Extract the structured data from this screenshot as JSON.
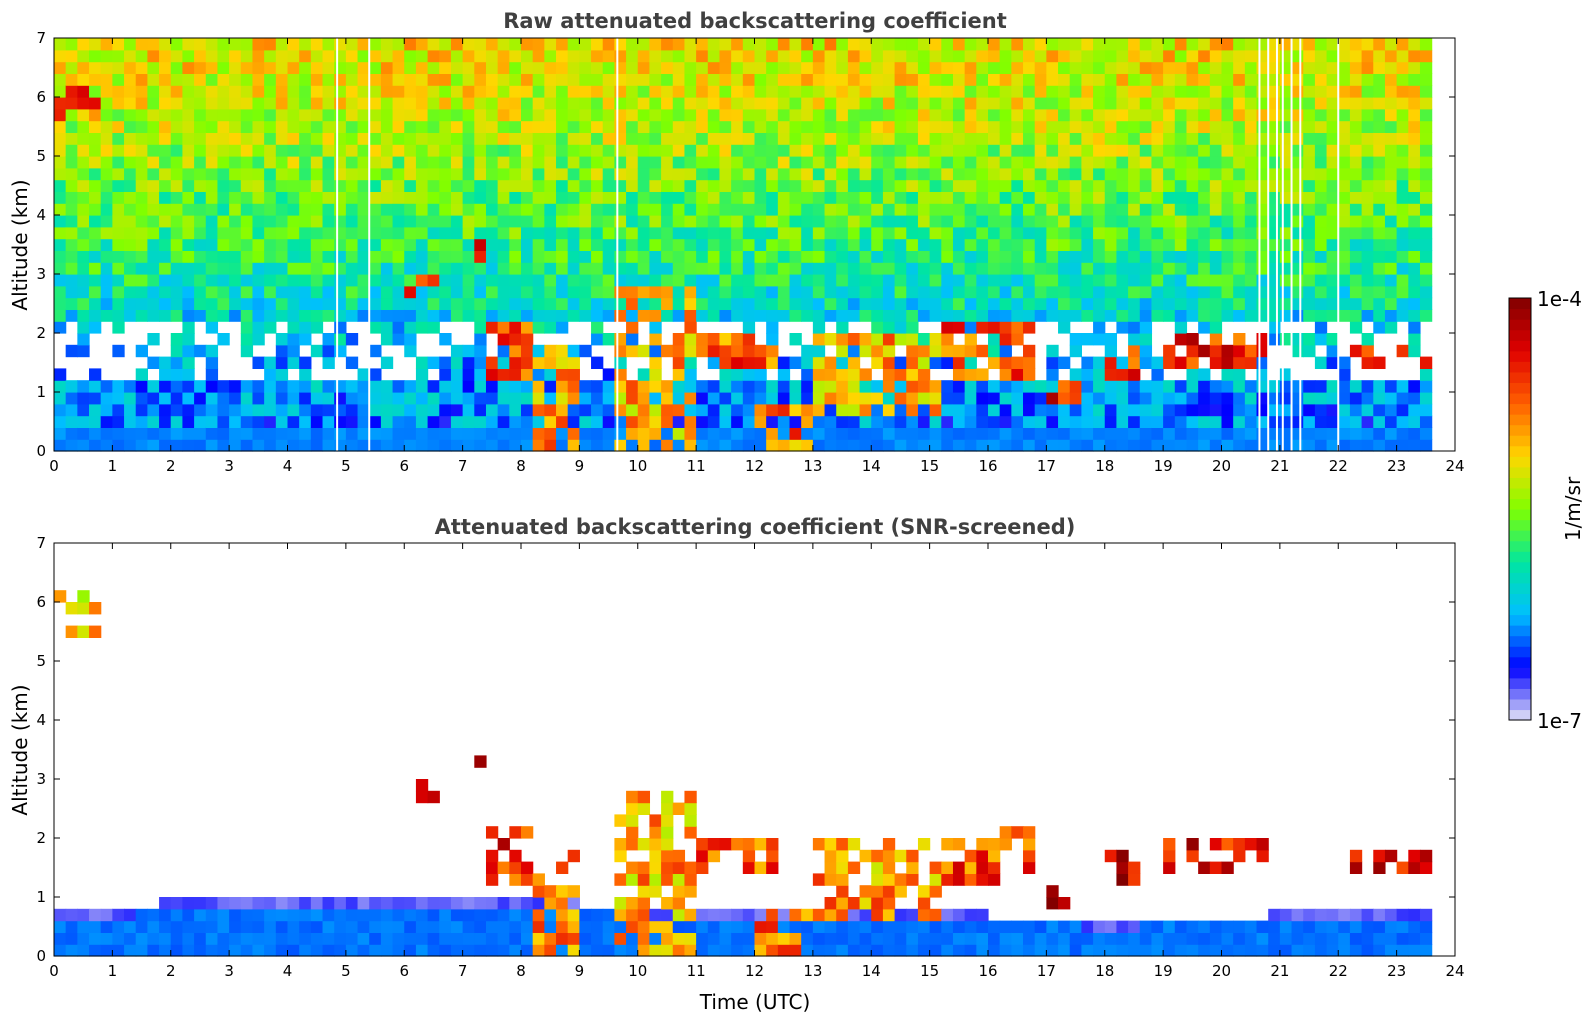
{
  "chart_data": [
    {
      "type": "heatmap",
      "title": "Raw attenuated backscattering coefficient",
      "xlabel": "",
      "ylabel": "Altitude (km)",
      "xlim": [
        0,
        24
      ],
      "ylim": [
        0,
        7
      ],
      "x_ticks": [
        "0",
        "1",
        "2",
        "3",
        "4",
        "5",
        "6",
        "7",
        "8",
        "9",
        "10",
        "11",
        "12",
        "13",
        "14",
        "15",
        "16",
        "17",
        "18",
        "19",
        "20",
        "21",
        "22",
        "23",
        "24"
      ],
      "y_ticks": [
        "0",
        "1",
        "2",
        "3",
        "4",
        "5",
        "6",
        "7"
      ],
      "data_end_time": 23.55,
      "background_profile": [
        {
          "altitude": 0.2,
          "level": 0.2
        },
        {
          "altitude": 1.5,
          "level": 0.25
        },
        {
          "altitude": 3.5,
          "level": 0.42
        },
        {
          "altitude": 5.5,
          "level": 0.55
        },
        {
          "altitude": 7.0,
          "level": 0.62
        }
      ],
      "cloud_features": [
        {
          "t0": 0.0,
          "t1": 0.8,
          "z0": 5.6,
          "z1": 6.3,
          "level": 0.92
        },
        {
          "t0": 6.0,
          "t1": 6.6,
          "z0": 2.7,
          "z1": 3.0,
          "level": 0.95
        },
        {
          "t0": 7.2,
          "t1": 7.4,
          "z0": 3.2,
          "z1": 3.6,
          "level": 0.95
        },
        {
          "t0": 7.4,
          "t1": 8.3,
          "z0": 1.3,
          "z1": 2.1,
          "level": 0.9
        },
        {
          "t0": 8.2,
          "t1": 9.0,
          "z0": 0.0,
          "z1": 1.8,
          "level": 0.82
        },
        {
          "t0": 9.5,
          "t1": 11.0,
          "z0": 0.1,
          "z1": 2.9,
          "level": 0.8
        },
        {
          "t0": 11.0,
          "t1": 12.3,
          "z0": 1.5,
          "z1": 1.9,
          "level": 0.88
        },
        {
          "t0": 12.0,
          "t1": 13.0,
          "z0": 0.0,
          "z1": 0.8,
          "level": 0.85
        },
        {
          "t0": 13.0,
          "t1": 15.2,
          "z0": 0.6,
          "z1": 2.0,
          "level": 0.8
        },
        {
          "t0": 15.2,
          "t1": 16.8,
          "z0": 1.2,
          "z1": 2.2,
          "level": 0.9
        },
        {
          "t0": 16.9,
          "t1": 17.6,
          "z0": 0.9,
          "z1": 1.2,
          "level": 0.95
        },
        {
          "t0": 17.9,
          "t1": 18.5,
          "z0": 1.3,
          "z1": 1.8,
          "level": 0.95
        },
        {
          "t0": 19.0,
          "t1": 20.8,
          "z0": 1.5,
          "z1": 1.9,
          "level": 0.95
        },
        {
          "t0": 22.1,
          "t1": 23.5,
          "z0": 1.45,
          "z1": 1.7,
          "level": 0.97
        }
      ],
      "missing_data_times": [
        4.85,
        5.4,
        9.65,
        20.65,
        20.8,
        20.95,
        21.05,
        21.2,
        21.35,
        22.0
      ]
    },
    {
      "type": "heatmap",
      "title": "Attenuated backscattering coefficient (SNR-screened)",
      "xlabel": "Time (UTC)",
      "ylabel": "Altitude (km)",
      "xlim": [
        0,
        24
      ],
      "ylim": [
        0,
        7
      ],
      "x_ticks": [
        "0",
        "1",
        "2",
        "3",
        "4",
        "5",
        "6",
        "7",
        "8",
        "9",
        "10",
        "11",
        "12",
        "13",
        "14",
        "15",
        "16",
        "17",
        "18",
        "19",
        "20",
        "21",
        "22",
        "23",
        "24"
      ],
      "y_ticks": [
        "0",
        "1",
        "2",
        "3",
        "4",
        "5",
        "6",
        "7"
      ],
      "data_end_time": 23.55,
      "boundary_layer_top": [
        {
          "time": 0,
          "altitude": 0.8
        },
        {
          "time": 3.5,
          "altitude": 1.0
        },
        {
          "time": 7.0,
          "altitude": 0.95
        },
        {
          "time": 15.0,
          "altitude": 0.75
        },
        {
          "time": 18.0,
          "altitude": 0.6
        },
        {
          "time": 23.5,
          "altitude": 0.8
        }
      ],
      "cloud_features": [
        {
          "t0": 0.0,
          "t1": 0.8,
          "z0": 5.5,
          "z1": 6.3,
          "level": 0.75
        },
        {
          "t0": 6.0,
          "t1": 6.6,
          "z0": 2.7,
          "z1": 3.0,
          "level": 1.0
        },
        {
          "t0": 7.2,
          "t1": 7.4,
          "z0": 3.2,
          "z1": 3.6,
          "level": 1.0
        },
        {
          "t0": 7.4,
          "t1": 8.3,
          "z0": 1.3,
          "z1": 2.1,
          "level": 0.95
        },
        {
          "t0": 8.2,
          "t1": 9.0,
          "z0": 0.0,
          "z1": 1.8,
          "level": 0.82
        },
        {
          "t0": 9.5,
          "t1": 11.0,
          "z0": 0.1,
          "z1": 2.9,
          "level": 0.8
        },
        {
          "t0": 11.0,
          "t1": 12.3,
          "z0": 1.5,
          "z1": 1.9,
          "level": 0.9
        },
        {
          "t0": 12.0,
          "t1": 13.0,
          "z0": 0.0,
          "z1": 0.8,
          "level": 0.85
        },
        {
          "t0": 13.0,
          "t1": 15.2,
          "z0": 0.6,
          "z1": 2.0,
          "level": 0.82
        },
        {
          "t0": 15.2,
          "t1": 16.8,
          "z0": 1.2,
          "z1": 2.2,
          "level": 0.9
        },
        {
          "t0": 16.9,
          "t1": 17.6,
          "z0": 0.9,
          "z1": 1.2,
          "level": 1.0
        },
        {
          "t0": 17.9,
          "t1": 18.5,
          "z0": 1.3,
          "z1": 1.8,
          "level": 1.0
        },
        {
          "t0": 19.0,
          "t1": 20.8,
          "z0": 1.5,
          "z1": 1.9,
          "level": 1.0
        },
        {
          "t0": 22.1,
          "t1": 23.5,
          "z0": 1.45,
          "z1": 1.7,
          "level": 1.0
        }
      ]
    }
  ],
  "colorbar": {
    "max_label": "1e-4",
    "min_label": "1e-7",
    "units_label": "1/m/sr",
    "colormap": [
      "#e6e6f5",
      "#0000ff",
      "#00bfff",
      "#00e6a0",
      "#80ff00",
      "#ffd700",
      "#ff6000",
      "#e00000",
      "#800000"
    ]
  }
}
